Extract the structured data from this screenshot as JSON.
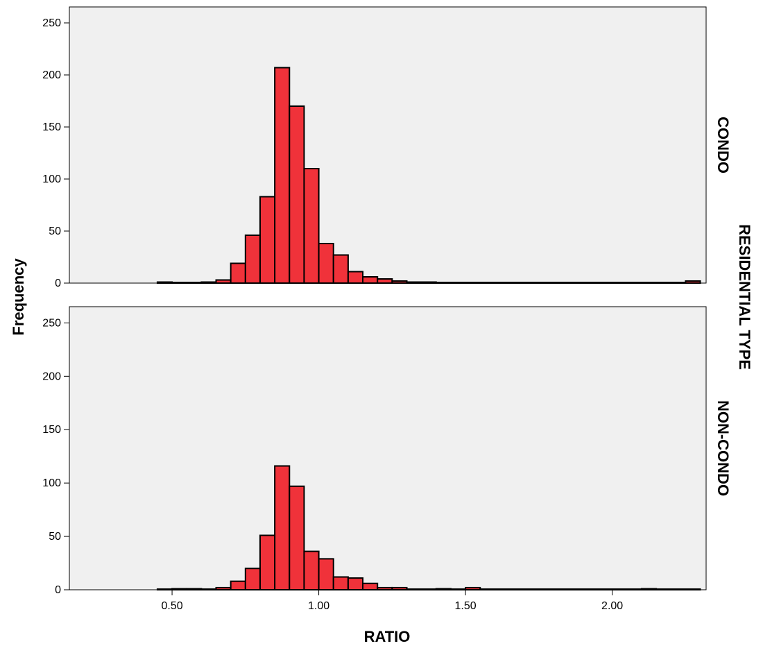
{
  "chart_data": {
    "type": "bar",
    "subtype": "histogram",
    "xlabel": "RATIO",
    "ylabel": "Frequency",
    "facet_label": "RESIDENTIAL TYPE",
    "xlim": [
      0.15,
      2.32
    ],
    "ylim": [
      0,
      260
    ],
    "x_ticks": [
      0.5,
      1.0,
      1.5,
      2.0
    ],
    "x_tick_labels": [
      "0.50",
      "1.00",
      "1.50",
      "2.00"
    ],
    "y_ticks": [
      0,
      50,
      100,
      150,
      200,
      250
    ],
    "y_tick_labels": [
      "0",
      "50",
      "100",
      "150",
      "200",
      "250"
    ],
    "bin_width": 0.05,
    "bin_start": 0.45,
    "grid": false,
    "bar_color": "#f0323a",
    "background_color": "#f0f0f0",
    "panels": [
      {
        "name": "CONDO",
        "values": [
          1,
          0,
          0,
          1,
          3,
          19,
          46,
          83,
          207,
          170,
          110,
          38,
          27,
          11,
          6,
          4,
          2,
          1,
          1,
          0,
          0,
          0,
          0,
          0,
          0,
          0,
          0,
          0,
          0,
          0,
          0,
          0,
          0,
          0,
          0,
          0,
          2
        ]
      },
      {
        "name": "NON-CONDO",
        "values": [
          0,
          1,
          1,
          0,
          2,
          8,
          20,
          51,
          116,
          97,
          36,
          29,
          12,
          11,
          6,
          2,
          2,
          0,
          0,
          1,
          0,
          2,
          0,
          0,
          0,
          0,
          0,
          0,
          0,
          0,
          0,
          0,
          0,
          1,
          0,
          0,
          0
        ]
      }
    ]
  }
}
